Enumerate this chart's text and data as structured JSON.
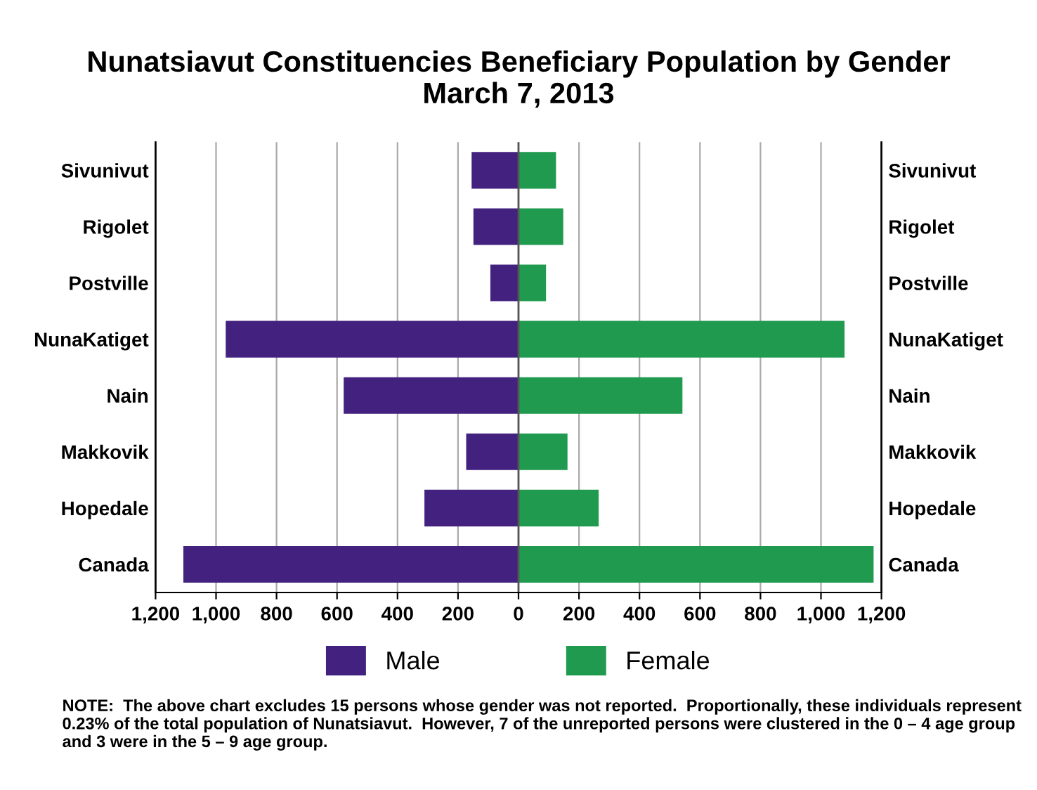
{
  "chart_data": {
    "type": "bar",
    "orientation": "horizontal",
    "title": "Nunatsiavut Constituencies Beneficiary Population by Gender\nMarch 7, 2013",
    "categories": [
      "Sivunivut",
      "Rigolet",
      "Postville",
      "NunaKatiget",
      "Nain",
      "Makkovik",
      "Hopedale",
      "Canada"
    ],
    "series": [
      {
        "name": "Male",
        "color": "#43227f",
        "values": [
          -155,
          -149,
          -93,
          -968,
          -578,
          -173,
          -311,
          -1108
        ]
      },
      {
        "name": "Female",
        "color": "#1f9a4e",
        "values": [
          124,
          148,
          91,
          1078,
          542,
          162,
          265,
          1174
        ]
      }
    ],
    "xlim": [
      -1200,
      1200
    ],
    "xticks": [
      {
        "value": -1200,
        "label": "1,200"
      },
      {
        "value": -1000,
        "label": "1,000"
      },
      {
        "value": -800,
        "label": "800"
      },
      {
        "value": -600,
        "label": "600"
      },
      {
        "value": -400,
        "label": "400"
      },
      {
        "value": -200,
        "label": "200"
      },
      0,
      200,
      400,
      600,
      800,
      {
        "value": 1000,
        "label": "1,000"
      },
      {
        "value": 1200,
        "label": "1,200"
      }
    ],
    "grid": "x",
    "legend": "bottom",
    "stacked": true,
    "annotations": [
      "NOTE:  The above chart excludes 15 persons whose gender was not reported.  Proportionally, these individuals represent 0.23% of the total population of Nunatsiavut.  However, 7 of the unreported persons were clustered in the 0 – 4 age group and 3 were in the 5 – 9 age group."
    ]
  }
}
